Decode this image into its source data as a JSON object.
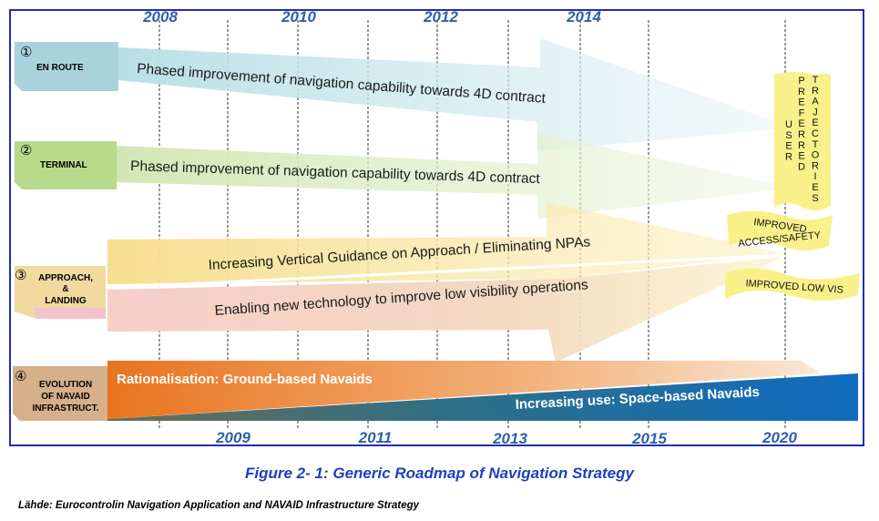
{
  "years_top": [
    "2008",
    "2010",
    "2012",
    "2014"
  ],
  "years_bottom": [
    "2009",
    "2011",
    "2013",
    "2015",
    "2020"
  ],
  "lanes": [
    {
      "number": "①",
      "label": "EN ROUTE",
      "color": "#a9d3dc"
    },
    {
      "number": "②",
      "label": "TERMINAL",
      "color": "#b9d98b"
    },
    {
      "number": "③",
      "label_lines": [
        "APPROACH,",
        "&",
        "LANDING"
      ],
      "color": "#f2d9a0"
    },
    {
      "number": "④",
      "label_lines": [
        "EVOLUTION",
        "OF NAVAID",
        "INFRASTRUCT."
      ],
      "color": "#d6b08a"
    }
  ],
  "bars": {
    "en_route": "Phased improvement of navigation capability towards 4D contract",
    "terminal": "Phased improvement of navigation capability towards 4D contract",
    "approach_vertical": "Increasing Vertical Guidance on Approach / Eliminating NPAs",
    "approach_lowvis": "Enabling new technology to improve low visibility operations",
    "ground_navaids": "Rationalisation: Ground-based Navaids",
    "space_navaids": "Increasing use: Space-based Navaids"
  },
  "outcomes": {
    "user_preferred": "USER PREFERRED TRAJECTORIES",
    "user_preferred_columns": [
      [
        "U",
        "S",
        "E",
        "R"
      ],
      [
        "P",
        "R",
        "E",
        "F",
        "E",
        "R",
        "R",
        "E",
        "D"
      ],
      [
        "T",
        "R",
        "A",
        "J",
        "E",
        "C",
        "T",
        "O",
        "R",
        "I",
        "E",
        "S"
      ]
    ],
    "access_safety_lines": [
      "IMPROVED",
      "ACCESS/SAFETY"
    ],
    "low_vis": "IMPROVED LOW VIS"
  },
  "colors": {
    "border": "#1f2fb0",
    "year_text": "#2e5fa8",
    "caption": "#1f3fbf",
    "banner": "#faf08a",
    "navaid_orange": "#e8832a",
    "navaid_blue": "#1a6fb5"
  },
  "caption": "Figure 2- 1: Generic Roadmap of Navigation Strategy",
  "source": "Lähde: Eurocontrolin Navigation Application and NAVAID Infrastructure Strategy"
}
